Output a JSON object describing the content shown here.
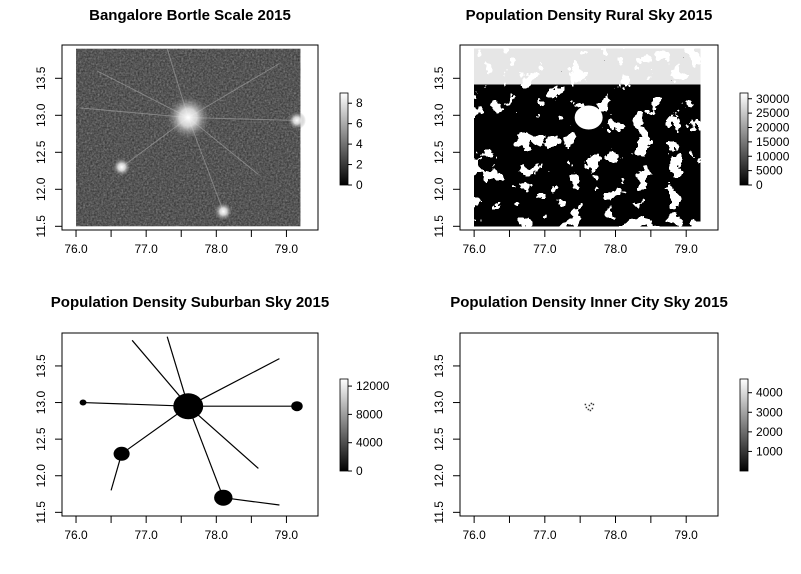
{
  "chart_data": [
    {
      "type": "heatmap",
      "title": "Bangalore Bortle Scale 2015",
      "xlabel": "",
      "ylabel": "",
      "xlim": [
        75.8,
        79.45
      ],
      "ylim": [
        11.45,
        13.95
      ],
      "raster_extent": {
        "x": [
          76.0,
          79.2
        ],
        "y": [
          11.5,
          13.9
        ]
      },
      "x_ticks": [
        "76.0",
        "77.0",
        "78.0",
        "79.0"
      ],
      "y_ticks": [
        "11.5",
        "12.0",
        "12.5",
        "13.0",
        "13.5"
      ],
      "legend": {
        "position": "right",
        "min": 0,
        "max": 9,
        "ticks": [
          "0",
          "2",
          "4",
          "6",
          "8"
        ]
      },
      "hotspots": [
        {
          "x": 77.6,
          "y": 12.97,
          "value": 9
        },
        {
          "x": 76.65,
          "y": 12.3,
          "value": 6
        },
        {
          "x": 78.1,
          "y": 11.7,
          "value": 6
        },
        {
          "x": 79.15,
          "y": 12.93,
          "value": 5
        }
      ]
    },
    {
      "type": "heatmap",
      "title": "Population Density Rural Sky 2015",
      "xlabel": "",
      "ylabel": "",
      "xlim": [
        75.8,
        79.45
      ],
      "ylim": [
        11.45,
        13.95
      ],
      "raster_extent": {
        "x": [
          76.0,
          79.2
        ],
        "y": [
          11.5,
          13.9
        ]
      },
      "x_ticks": [
        "76.0",
        "77.0",
        "78.0",
        "79.0"
      ],
      "y_ticks": [
        "11.5",
        "12.0",
        "12.5",
        "13.0",
        "13.5"
      ],
      "legend": {
        "position": "right",
        "min": 0,
        "max": 32000,
        "ticks": [
          "0",
          "5000",
          "10000",
          "15000",
          "20000",
          "25000",
          "30000"
        ]
      }
    },
    {
      "type": "heatmap",
      "title": "Population Density Suburban Sky 2015",
      "xlabel": "",
      "ylabel": "",
      "xlim": [
        75.8,
        79.45
      ],
      "ylim": [
        11.45,
        13.95
      ],
      "raster_extent": {
        "x": [
          76.0,
          79.2
        ],
        "y": [
          11.5,
          13.9
        ]
      },
      "x_ticks": [
        "76.0",
        "77.0",
        "78.0",
        "79.0"
      ],
      "y_ticks": [
        "11.5",
        "12.0",
        "12.5",
        "13.0",
        "13.5"
      ],
      "legend": {
        "position": "right",
        "min": 0,
        "max": 13000,
        "ticks": [
          "0",
          "4000",
          "8000",
          "12000"
        ]
      },
      "hotspots": [
        {
          "x": 77.6,
          "y": 12.95,
          "value": 0
        },
        {
          "x": 76.65,
          "y": 12.3,
          "value": 0
        },
        {
          "x": 78.1,
          "y": 11.7,
          "value": 0
        },
        {
          "x": 79.15,
          "y": 12.95,
          "value": 0
        },
        {
          "x": 76.1,
          "y": 13.0,
          "value": 0
        }
      ]
    },
    {
      "type": "heatmap",
      "title": "Population Density Inner City Sky 2015",
      "xlabel": "",
      "ylabel": "",
      "xlim": [
        75.8,
        79.45
      ],
      "ylim": [
        11.45,
        13.95
      ],
      "raster_extent": {
        "x": [
          76.0,
          79.2
        ],
        "y": [
          11.5,
          13.9
        ]
      },
      "x_ticks": [
        "76.0",
        "77.0",
        "78.0",
        "79.0"
      ],
      "y_ticks": [
        "11.5",
        "12.0",
        "12.5",
        "13.0",
        "13.5"
      ],
      "legend": {
        "position": "right",
        "min": 0,
        "max": 4700,
        "ticks": [
          "1000",
          "2000",
          "3000",
          "4000"
        ]
      },
      "hotspots": [
        {
          "x": 77.62,
          "y": 12.97,
          "value": 2500
        }
      ]
    }
  ]
}
